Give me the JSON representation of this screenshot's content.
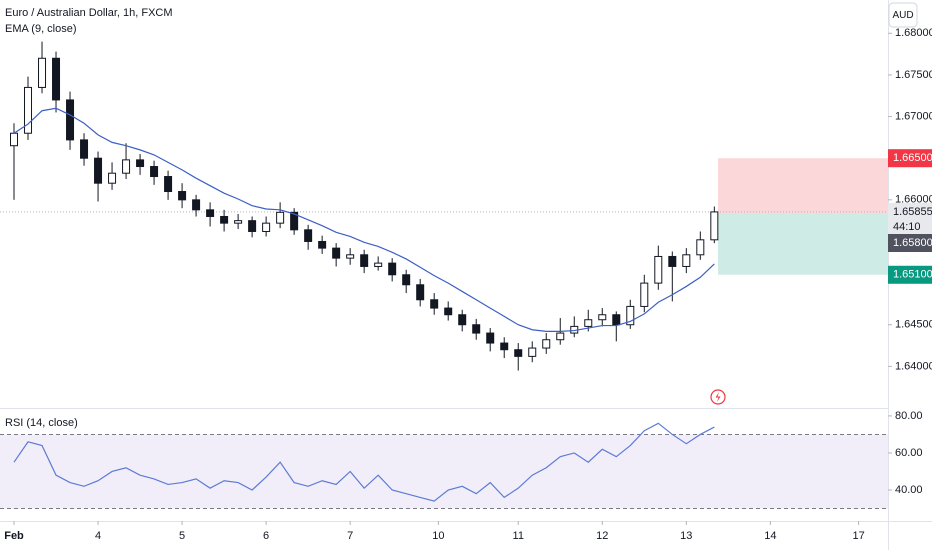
{
  "chart_data": {
    "type": "candlestick",
    "title": "Euro / Australian Dollar, 1h, FXCM",
    "currency": "AUD",
    "up_color": "#ffffff",
    "down_color": "#131722",
    "open": [
      1.6665,
      1.668,
      1.6735,
      1.677,
      1.672,
      1.6672,
      1.665,
      1.662,
      1.6632,
      1.6648,
      1.664,
      1.6628,
      1.661,
      1.66,
      1.6588,
      1.658,
      1.6572,
      1.6575,
      1.6562,
      1.6572,
      1.6585,
      1.6564,
      1.655,
      1.6542,
      1.653,
      1.6534,
      1.652,
      1.6524,
      1.651,
      1.6498,
      1.648,
      1.647,
      1.6462,
      1.645,
      1.644,
      1.6428,
      1.642,
      1.6412,
      1.6422,
      1.6432,
      1.644,
      1.6448,
      1.6456,
      1.6462,
      1.645,
      1.6472,
      1.65,
      1.6532,
      1.652,
      1.6534,
      1.6552
    ],
    "high": [
      1.6692,
      1.6748,
      1.679,
      1.6778,
      1.673,
      1.668,
      1.6658,
      1.6645,
      1.6668,
      1.6655,
      1.6647,
      1.6635,
      1.662,
      1.6606,
      1.6597,
      1.6588,
      1.6583,
      1.658,
      1.658,
      1.6597,
      1.659,
      1.657,
      1.6557,
      1.6548,
      1.6542,
      1.654,
      1.6532,
      1.653,
      1.6516,
      1.6505,
      1.6488,
      1.6478,
      1.6468,
      1.6457,
      1.6446,
      1.6435,
      1.6428,
      1.643,
      1.644,
      1.6458,
      1.646,
      1.6468,
      1.647,
      1.6466,
      1.648,
      1.651,
      1.6545,
      1.6538,
      1.6542,
      1.6562,
      1.6592
    ],
    "low": [
      1.66,
      1.6672,
      1.6728,
      1.6705,
      1.666,
      1.6641,
      1.6598,
      1.6612,
      1.6625,
      1.663,
      1.6618,
      1.66,
      1.659,
      1.658,
      1.6568,
      1.6562,
      1.6565,
      1.6555,
      1.6556,
      1.6566,
      1.6558,
      1.654,
      1.6535,
      1.652,
      1.6522,
      1.6512,
      1.6515,
      1.6502,
      1.6488,
      1.6472,
      1.6462,
      1.6455,
      1.6442,
      1.6432,
      1.6418,
      1.641,
      1.6395,
      1.6405,
      1.6415,
      1.6426,
      1.6435,
      1.6442,
      1.6448,
      1.643,
      1.6445,
      1.6465,
      1.6492,
      1.6478,
      1.6512,
      1.6528,
      1.6548
    ],
    "close": [
      1.668,
      1.6735,
      1.677,
      1.672,
      1.6672,
      1.665,
      1.662,
      1.6632,
      1.6648,
      1.664,
      1.6628,
      1.661,
      1.66,
      1.6588,
      1.658,
      1.6572,
      1.6575,
      1.6562,
      1.6572,
      1.6585,
      1.6564,
      1.655,
      1.6542,
      1.653,
      1.6534,
      1.652,
      1.6524,
      1.651,
      1.6498,
      1.648,
      1.647,
      1.6462,
      1.645,
      1.644,
      1.6428,
      1.642,
      1.6412,
      1.6422,
      1.6432,
      1.644,
      1.6448,
      1.6456,
      1.6462,
      1.645,
      1.6472,
      1.65,
      1.6532,
      1.652,
      1.6534,
      1.6552,
      1.65855
    ],
    "ema": {
      "name": "EMA (9, close)",
      "color": "#3d5fc4",
      "values": [
        1.668,
        1.6691,
        1.6707,
        1.671,
        1.6702,
        1.6692,
        1.6678,
        1.6669,
        1.6665,
        1.666,
        1.6654,
        1.6645,
        1.6636,
        1.6626,
        1.6617,
        1.6608,
        1.6601,
        1.6593,
        1.6589,
        1.6588,
        1.6583,
        1.6576,
        1.6569,
        1.6561,
        1.6556,
        1.6549,
        1.6544,
        1.6537,
        1.6529,
        1.6519,
        1.6509,
        1.65,
        1.649,
        1.648,
        1.647,
        1.646,
        1.645,
        1.6444,
        1.6442,
        1.6442,
        1.6443,
        1.6446,
        1.6449,
        1.6449,
        1.6454,
        1.6463,
        1.6477,
        1.6486,
        1.6496,
        1.6507,
        1.6523
      ]
    },
    "xlim": [
      -1,
      62.4
    ],
    "xticks": [
      {
        "value": 0,
        "label": "Feb"
      },
      {
        "value": 6,
        "label": "4"
      },
      {
        "value": 12,
        "label": "5"
      },
      {
        "value": 18,
        "label": "6"
      },
      {
        "value": 24,
        "label": "7"
      },
      {
        "value": 30.3,
        "label": "10"
      },
      {
        "value": 36,
        "label": "11"
      },
      {
        "value": 42,
        "label": "12"
      },
      {
        "value": 48,
        "label": "13"
      },
      {
        "value": 54,
        "label": "14"
      },
      {
        "value": 60.3,
        "label": "17"
      }
    ],
    "ylim": [
      1.635,
      1.684
    ],
    "yticks": [
      {
        "value": 1.68,
        "label": "1.68000"
      },
      {
        "value": 1.675,
        "label": "1.67500"
      },
      {
        "value": 1.67,
        "label": "1.67000"
      },
      {
        "value": 1.66,
        "label": "1.66000"
      },
      {
        "value": 1.645,
        "label": "1.64500"
      },
      {
        "value": 1.64,
        "label": "1.64000"
      }
    ],
    "current_price": {
      "value": 1.65855,
      "label": "1.65855"
    },
    "countdown": "44:10",
    "extra_label": "1.65800",
    "position": {
      "stop": {
        "value": 1.665,
        "label": "1.66500"
      },
      "entry": 1.6584,
      "target": {
        "value": 1.651,
        "label": "1.65100"
      }
    },
    "rsi": {
      "name": "RSI (14, close)",
      "color": "#5b7bd5",
      "values": [
        55,
        66,
        64,
        48,
        44,
        42,
        45,
        50,
        52,
        48,
        46,
        43,
        44,
        46,
        41,
        45,
        44,
        40,
        47,
        55,
        44,
        42,
        45,
        43,
        50,
        41,
        48,
        40,
        38,
        36,
        34,
        40,
        42,
        38,
        44,
        36,
        41,
        48,
        52,
        58,
        60,
        55,
        62,
        58,
        64,
        72,
        76,
        70,
        65,
        70,
        74
      ],
      "ylim": [
        23.8,
        83.2
      ],
      "yticks": [
        {
          "value": 80,
          "label": "80.00"
        },
        {
          "value": 60,
          "label": "60.00"
        },
        {
          "value": 40,
          "label": "40.00"
        }
      ],
      "bands": [
        30,
        70
      ]
    }
  }
}
